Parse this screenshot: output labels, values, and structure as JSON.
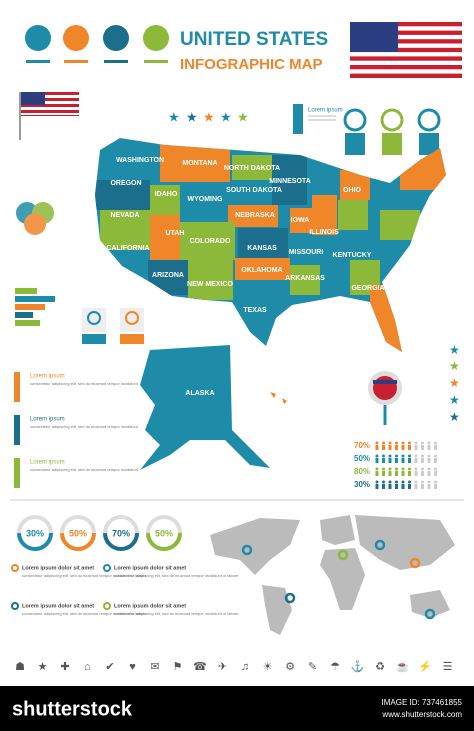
{
  "header": {
    "title": "UNITED STATES",
    "subtitle": "INFOGRAPHIC MAP"
  },
  "map": {
    "states": [
      "WASHINGTON",
      "MONTANA",
      "NORTH DAKOTA",
      "MINNESOTA",
      "OREGON",
      "IDAHO",
      "SOUTH DAKOTA",
      "WYOMING",
      "NEBRASKA",
      "IOWA",
      "NEVADA",
      "UTAH",
      "COLORADO",
      "KANSAS",
      "MISSOURI",
      "ILLINOIS",
      "CALIFORNIA",
      "ARIZONA",
      "NEW MEXICO",
      "OKLAHOMA",
      "ARKANSAS",
      "TEXAS",
      "KENTUCKY",
      "GEORGIA",
      "OHIO"
    ],
    "alaska": "ALASKA"
  },
  "info_box": {
    "title": "Lorem ipsum"
  },
  "side_notes": [
    {
      "title": "Lorem ipsum",
      "text": "consectetur adipiscing elit, sed do eiusmod tempor incididunt"
    },
    {
      "title": "Lorem ipsum",
      "text": "consectetur adipiscing elit, sed do eiusmod tempor incididunt"
    },
    {
      "title": "Lorem ipsum",
      "text": "consectetur adipiscing elit, sed do eiusmod tempor incididunt"
    }
  ],
  "people_rows": [
    "70%",
    "50%",
    "80%",
    "30%"
  ],
  "gauges": [
    "30%",
    "50%",
    "70%",
    "50%"
  ],
  "notes": [
    {
      "title": "Lorem ipsum dolor sit amet",
      "text": "consectetur adipiscing elit, sed do eiusmod tempor incididunt ut labore"
    },
    {
      "title": "Lorem ipsum dolor sit amet",
      "text": "consectetur adipiscing elit, sed do eiusmod tempor incididunt ut labore"
    },
    {
      "title": "Lorem ipsum dolor sit amet",
      "text": "consectetur adipiscing elit, sed do eiusmod tempor incididunt ut labore"
    },
    {
      "title": "Lorem ipsum dolor sit amet",
      "text": "consectetur adipiscing elit, sed do eiusmod tempor incididunt ut labore"
    }
  ],
  "footer": {
    "brand": "shutterstock",
    "image_id": "IMAGE ID: 737461855",
    "url": "www.shutterstock.com"
  }
}
